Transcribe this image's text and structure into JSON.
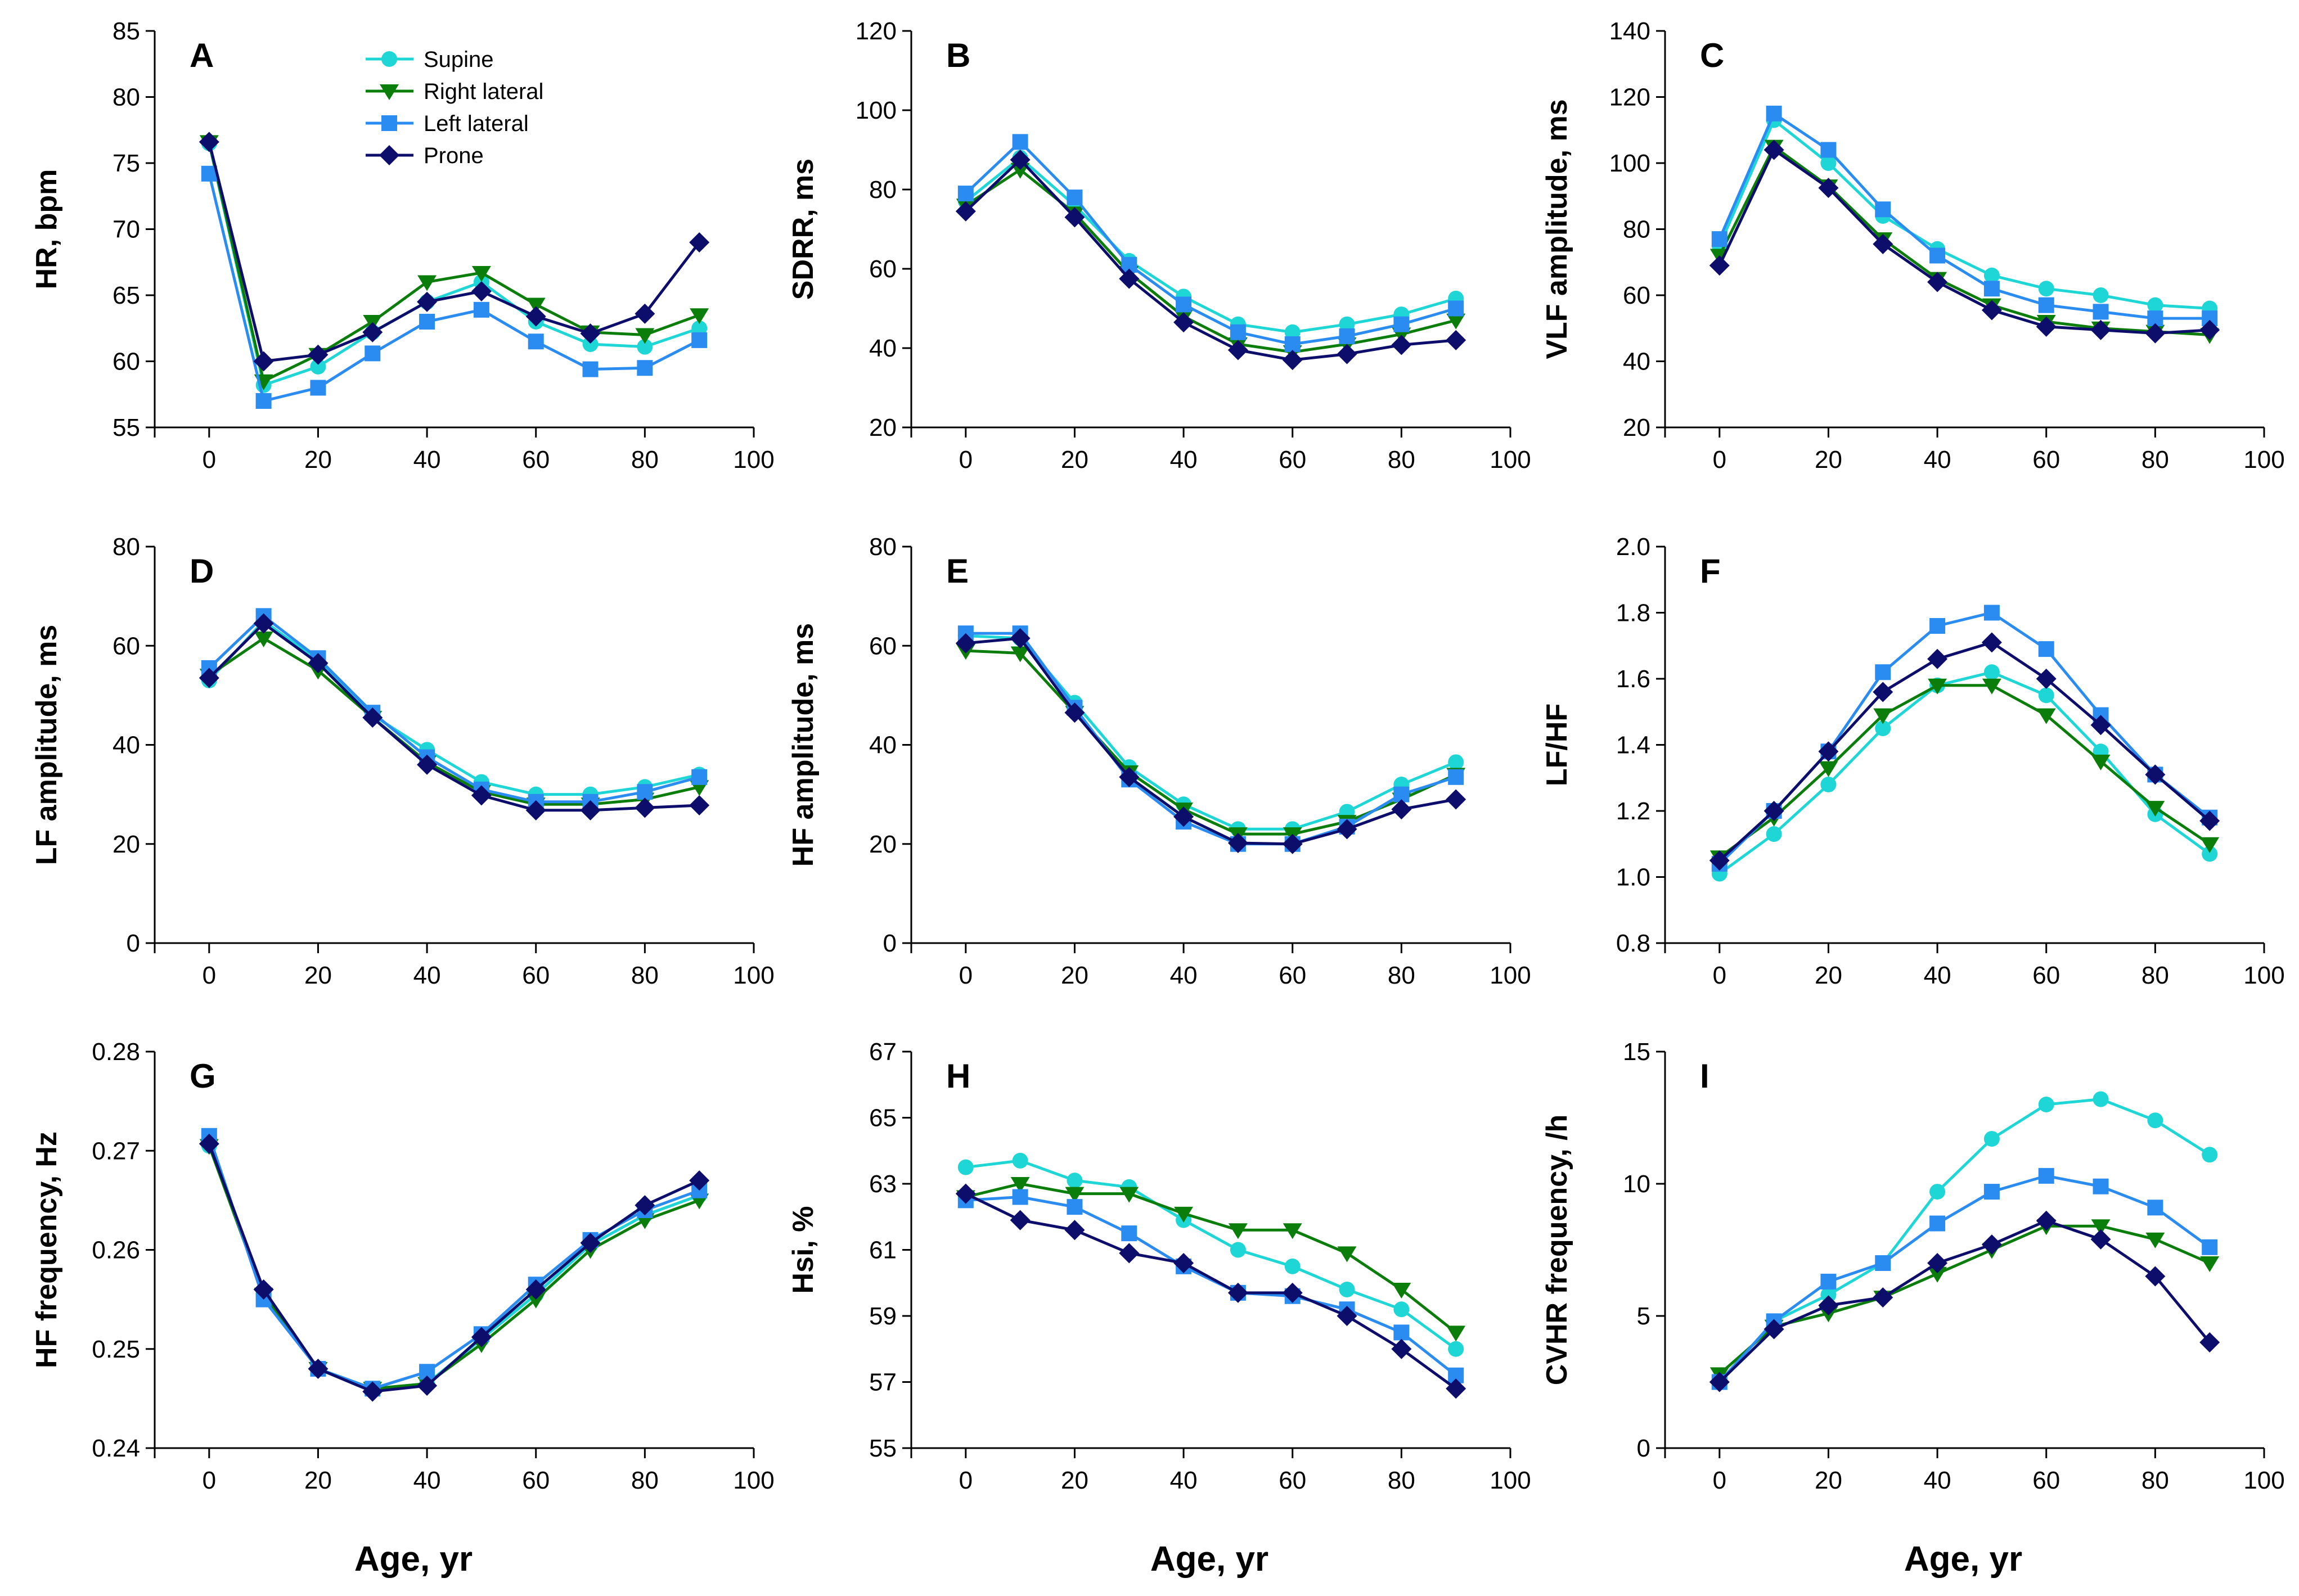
{
  "series_styles": [
    {
      "name": "Supine",
      "color": "#1fd6d6",
      "marker": "circle"
    },
    {
      "name": "Right lateral",
      "color": "#0b7d0b",
      "marker": "triangle-down"
    },
    {
      "name": "Left lateral",
      "color": "#2a8cf0",
      "marker": "square"
    },
    {
      "name": "Prone",
      "color": "#0d0d6b",
      "marker": "diamond"
    }
  ],
  "legend": {
    "panel": 0,
    "placement": "top-center"
  },
  "x_axis_title": "Age, yr",
  "chart_data": [
    {
      "type": "line",
      "letter": "A",
      "ylabel": "HR, bpm",
      "xlim": [
        -10,
        100
      ],
      "xticks": [
        0,
        20,
        40,
        60,
        80,
        100
      ],
      "ylim": [
        55,
        85
      ],
      "yticks": [
        55,
        60,
        65,
        70,
        75,
        80,
        85
      ],
      "x": [
        0,
        10,
        20,
        30,
        40,
        50,
        60,
        70,
        80,
        90
      ],
      "series": [
        {
          "name": "Supine",
          "values": [
            76.5,
            58.2,
            59.6,
            62.2,
            64.5,
            66.0,
            63.0,
            61.3,
            61.1,
            62.5
          ]
        },
        {
          "name": "Right lateral",
          "values": [
            76.6,
            58.5,
            60.5,
            63.0,
            66.0,
            66.7,
            64.3,
            62.2,
            62.0,
            63.5
          ]
        },
        {
          "name": "Left lateral",
          "values": [
            74.2,
            57.0,
            58.0,
            60.6,
            63.0,
            63.9,
            61.5,
            59.4,
            59.5,
            61.6
          ]
        },
        {
          "name": "Prone",
          "values": [
            76.6,
            60.0,
            60.5,
            62.2,
            64.5,
            65.3,
            63.4,
            62.1,
            63.6,
            69.0
          ]
        }
      ]
    },
    {
      "type": "line",
      "letter": "B",
      "ylabel": "SDRR, ms",
      "xlim": [
        -10,
        100
      ],
      "xticks": [
        0,
        20,
        40,
        60,
        80,
        100
      ],
      "ylim": [
        20,
        120
      ],
      "yticks": [
        20,
        40,
        60,
        80,
        100,
        120
      ],
      "x": [
        0,
        10,
        20,
        30,
        40,
        50,
        60,
        70,
        80,
        90
      ],
      "series": [
        {
          "name": "Supine",
          "values": [
            77,
            88,
            76,
            62,
            53,
            46,
            44,
            46,
            48.5,
            52.5
          ]
        },
        {
          "name": "Right lateral",
          "values": [
            76,
            85,
            74,
            59,
            48,
            41,
            39,
            41,
            43.5,
            47
          ]
        },
        {
          "name": "Left lateral",
          "values": [
            79,
            92,
            78,
            61,
            51,
            44,
            41,
            43,
            46,
            50
          ]
        },
        {
          "name": "Prone",
          "values": [
            74.5,
            87.5,
            73,
            57.5,
            46.5,
            39.5,
            37,
            38.5,
            40.8,
            42
          ]
        }
      ]
    },
    {
      "type": "line",
      "letter": "C",
      "ylabel": "VLF amplitude, ms",
      "xlim": [
        -10,
        100
      ],
      "xticks": [
        0,
        20,
        40,
        60,
        80,
        100
      ],
      "ylim": [
        20,
        140
      ],
      "yticks": [
        20,
        40,
        60,
        80,
        100,
        120,
        140
      ],
      "x": [
        0,
        10,
        20,
        30,
        40,
        50,
        60,
        70,
        80,
        90
      ],
      "series": [
        {
          "name": "Supine",
          "values": [
            75,
            113,
            100,
            84,
            74,
            66,
            62,
            60,
            57,
            56
          ]
        },
        {
          "name": "Right lateral",
          "values": [
            72,
            105,
            93,
            77,
            65,
            57,
            52,
            50,
            49,
            48
          ]
        },
        {
          "name": "Left lateral",
          "values": [
            77,
            115,
            104,
            86,
            72,
            62,
            57,
            55,
            53,
            53
          ]
        },
        {
          "name": "Prone",
          "values": [
            69,
            104,
            92.5,
            75.5,
            64,
            55.5,
            50.5,
            49.5,
            48.5,
            49.5
          ]
        }
      ]
    },
    {
      "type": "line",
      "letter": "D",
      "ylabel": "LF amplitude, ms",
      "xlim": [
        -10,
        100
      ],
      "xticks": [
        0,
        20,
        40,
        60,
        80,
        100
      ],
      "ylim": [
        0,
        80
      ],
      "yticks": [
        0,
        20,
        40,
        60,
        80
      ],
      "x": [
        0,
        10,
        20,
        30,
        40,
        50,
        60,
        70,
        80,
        90
      ],
      "series": [
        {
          "name": "Supine",
          "values": [
            53,
            65,
            57,
            46,
            39,
            32.5,
            30,
            30,
            31.5,
            34
          ]
        },
        {
          "name": "Right lateral",
          "values": [
            54,
            61.5,
            55,
            45.5,
            36.5,
            30.5,
            28,
            28,
            29,
            31.5
          ]
        },
        {
          "name": "Left lateral",
          "values": [
            55.5,
            66,
            57.5,
            46.5,
            37.5,
            31,
            28.5,
            28.5,
            30.5,
            33.5
          ]
        },
        {
          "name": "Prone",
          "values": [
            53.5,
            64.5,
            56.5,
            45.5,
            36,
            29.8,
            26.8,
            26.8,
            27.3,
            27.8
          ]
        }
      ]
    },
    {
      "type": "line",
      "letter": "E",
      "ylabel": "HF amplitude, ms",
      "xlim": [
        -10,
        100
      ],
      "xticks": [
        0,
        20,
        40,
        60,
        80,
        100
      ],
      "ylim": [
        0,
        80
      ],
      "yticks": [
        0,
        20,
        40,
        60,
        80
      ],
      "x": [
        0,
        10,
        20,
        30,
        40,
        50,
        60,
        70,
        80,
        90
      ],
      "series": [
        {
          "name": "Supine",
          "values": [
            62,
            61.5,
            48.5,
            35.5,
            28,
            23,
            23,
            26.5,
            32,
            36.5
          ]
        },
        {
          "name": "Right lateral",
          "values": [
            59,
            58.5,
            46.5,
            34.5,
            27,
            22,
            22,
            24.5,
            29,
            34
          ]
        },
        {
          "name": "Left lateral",
          "values": [
            62.5,
            62.5,
            47.5,
            33,
            24.5,
            20,
            20,
            23.5,
            30,
            33.5
          ]
        },
        {
          "name": "Prone",
          "values": [
            60.5,
            61.5,
            46.5,
            33.5,
            25.5,
            20.2,
            20,
            23,
            27,
            29
          ]
        }
      ]
    },
    {
      "type": "line",
      "letter": "F",
      "ylabel": "LF/HF",
      "xlim": [
        -10,
        100
      ],
      "xticks": [
        0,
        20,
        40,
        60,
        80,
        100
      ],
      "ylim": [
        0.8,
        2.0
      ],
      "yticks": [
        0.8,
        1.0,
        1.2,
        1.4,
        1.6,
        1.8,
        2.0
      ],
      "ytick_labels": [
        "0.8",
        "1.0",
        "1.2",
        "1.4",
        "1.6",
        "1.8",
        "2.0"
      ],
      "x": [
        0,
        10,
        20,
        30,
        40,
        50,
        60,
        70,
        80,
        90
      ],
      "series": [
        {
          "name": "Supine",
          "values": [
            1.01,
            1.13,
            1.28,
            1.45,
            1.58,
            1.62,
            1.55,
            1.38,
            1.19,
            1.07
          ]
        },
        {
          "name": "Right lateral",
          "values": [
            1.06,
            1.18,
            1.33,
            1.49,
            1.58,
            1.58,
            1.49,
            1.35,
            1.21,
            1.1
          ]
        },
        {
          "name": "Left lateral",
          "values": [
            1.04,
            1.2,
            1.38,
            1.62,
            1.76,
            1.8,
            1.69,
            1.49,
            1.31,
            1.18
          ]
        },
        {
          "name": "Prone",
          "values": [
            1.05,
            1.2,
            1.38,
            1.56,
            1.66,
            1.71,
            1.6,
            1.46,
            1.31,
            1.17
          ]
        }
      ]
    },
    {
      "type": "line",
      "letter": "G",
      "ylabel": "HF frequency, Hz",
      "xlim": [
        -10,
        100
      ],
      "xticks": [
        0,
        20,
        40,
        60,
        80,
        100
      ],
      "ylim": [
        0.24,
        0.28
      ],
      "yticks": [
        0.24,
        0.25,
        0.26,
        0.27,
        0.28
      ],
      "ytick_labels": [
        "0.24",
        "0.25",
        "0.26",
        "0.27",
        "0.28"
      ],
      "x": [
        0,
        10,
        20,
        30,
        40,
        50,
        60,
        70,
        80,
        90
      ],
      "series": [
        {
          "name": "Supine",
          "values": [
            0.2705,
            0.2555,
            0.248,
            0.246,
            0.2465,
            0.251,
            0.2555,
            0.2605,
            0.2635,
            0.2655
          ]
        },
        {
          "name": "Right lateral",
          "values": [
            0.2705,
            0.2555,
            0.248,
            0.246,
            0.2465,
            0.2505,
            0.255,
            0.26,
            0.263,
            0.265
          ]
        },
        {
          "name": "Left lateral",
          "values": [
            0.2715,
            0.255,
            0.248,
            0.246,
            0.2477,
            0.2515,
            0.2565,
            0.261,
            0.264,
            0.266
          ]
        },
        {
          "name": "Prone",
          "values": [
            0.2707,
            0.256,
            0.248,
            0.2457,
            0.2463,
            0.2512,
            0.256,
            0.2607,
            0.2645,
            0.267
          ]
        }
      ]
    },
    {
      "type": "line",
      "letter": "H",
      "ylabel": "Hsi, %",
      "xlim": [
        -10,
        100
      ],
      "xticks": [
        0,
        20,
        40,
        60,
        80,
        100
      ],
      "ylim": [
        55,
        67
      ],
      "yticks": [
        55,
        57,
        59,
        61,
        63,
        65,
        67
      ],
      "x": [
        0,
        10,
        20,
        30,
        40,
        50,
        60,
        70,
        80,
        90
      ],
      "series": [
        {
          "name": "Supine",
          "values": [
            63.5,
            63.7,
            63.1,
            62.9,
            61.9,
            61.0,
            60.5,
            59.8,
            59.2,
            58.0
          ]
        },
        {
          "name": "Right lateral",
          "values": [
            62.6,
            63.0,
            62.7,
            62.7,
            62.1,
            61.6,
            61.6,
            60.9,
            59.8,
            58.5
          ]
        },
        {
          "name": "Left lateral",
          "values": [
            62.5,
            62.6,
            62.3,
            61.5,
            60.5,
            59.7,
            59.6,
            59.2,
            58.5,
            57.2
          ]
        },
        {
          "name": "Prone",
          "values": [
            62.7,
            61.9,
            61.6,
            60.9,
            60.6,
            59.7,
            59.7,
            59.0,
            58.0,
            56.8
          ]
        }
      ]
    },
    {
      "type": "line",
      "letter": "I",
      "ylabel": "CVHR frequency, /h",
      "xlim": [
        -10,
        100
      ],
      "xticks": [
        0,
        20,
        40,
        60,
        80,
        100
      ],
      "ylim": [
        0,
        15
      ],
      "yticks": [
        0,
        5,
        10,
        15
      ],
      "x": [
        0,
        10,
        20,
        30,
        40,
        50,
        60,
        70,
        80,
        90
      ],
      "series": [
        {
          "name": "Supine",
          "values": [
            2.5,
            4.8,
            5.8,
            7.0,
            9.7,
            11.7,
            13.0,
            13.2,
            12.4,
            11.1
          ]
        },
        {
          "name": "Right lateral",
          "values": [
            2.8,
            4.6,
            5.1,
            5.7,
            6.6,
            7.5,
            8.4,
            8.4,
            7.9,
            7.0
          ]
        },
        {
          "name": "Left lateral",
          "values": [
            2.5,
            4.8,
            6.3,
            7.0,
            8.5,
            9.7,
            10.3,
            9.9,
            9.1,
            7.6
          ]
        },
        {
          "name": "Prone",
          "values": [
            2.5,
            4.5,
            5.4,
            5.7,
            7.0,
            7.7,
            8.6,
            7.9,
            6.5,
            4.0
          ]
        }
      ]
    }
  ]
}
